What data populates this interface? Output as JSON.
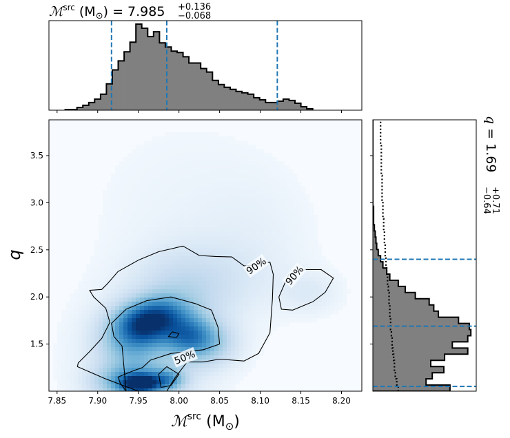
{
  "top_title": {
    "label": "ℳ",
    "label_sup": "src",
    "unit": " (M",
    "unit_sub": "⊙",
    "unit_close": ")",
    "equals": " = ",
    "value": "7.985",
    "upper": "+0.136",
    "lower": "−0.068"
  },
  "side_title": {
    "label": "q",
    "equals": " = ",
    "value": "1.69",
    "upper": "+0.71",
    "lower": "−0.64"
  },
  "xlabel": {
    "label": "ℳ",
    "label_sup": "src",
    "unit": " (M",
    "unit_sub": "⊙",
    "unit_close": ")"
  },
  "ylabel": "q",
  "colors": {
    "hist_fill": "#808080",
    "hist_edge": "#000000",
    "quantile_line": "#1f77b4",
    "heat_low": "#f7fbff",
    "heat_high": "#08306b",
    "contour": "#000000"
  },
  "chart_data": [
    {
      "type": "heatmap",
      "xlim": [
        7.84,
        8.225
      ],
      "ylim": [
        1.0,
        3.88
      ],
      "x_ticks": [
        7.85,
        7.9,
        7.95,
        8.0,
        8.05,
        8.1,
        8.15,
        8.2
      ],
      "x_tick_labels": [
        "7.85",
        "7.90",
        "7.95",
        "8.00",
        "8.05",
        "8.10",
        "8.15",
        "8.20"
      ],
      "y_ticks": [
        1.5,
        2.0,
        2.5,
        3.0,
        3.5
      ],
      "y_tick_labels": [
        "1.5",
        "2.0",
        "2.5",
        "3.0",
        "3.5"
      ],
      "contour_labels": [
        {
          "text": "90%",
          "x": 8.095,
          "y": 2.33,
          "rotation": -35
        },
        {
          "text": "90%",
          "x": 8.142,
          "y": 2.23,
          "rotation": -50
        },
        {
          "text": "50%",
          "x": 8.007,
          "y": 1.36,
          "rotation": -22
        }
      ],
      "contours": [
        {
          "level": "90%",
          "points": [
            [
              7.95,
              1.0
            ],
            [
              7.91,
              1.13
            ],
            [
              7.875,
              1.26
            ],
            [
              7.876,
              1.3
            ],
            [
              7.89,
              1.42
            ],
            [
              7.905,
              1.56
            ],
            [
              7.915,
              1.73
            ],
            [
              7.91,
              1.88
            ],
            [
              7.895,
              2.0
            ],
            [
              7.89,
              2.07
            ],
            [
              7.905,
              2.08
            ],
            [
              7.912,
              2.14
            ],
            [
              7.925,
              2.27
            ],
            [
              7.95,
              2.39
            ],
            [
              7.975,
              2.48
            ],
            [
              8.005,
              2.54
            ],
            [
              8.025,
              2.44
            ],
            [
              8.045,
              2.43
            ],
            [
              8.065,
              2.425
            ],
            [
              8.08,
              2.33
            ],
            [
              8.095,
              2.34
            ],
            [
              8.112,
              2.37
            ],
            [
              8.116,
              2.24
            ],
            [
              8.115,
              1.98
            ],
            [
              8.112,
              1.62
            ],
            [
              8.098,
              1.4
            ],
            [
              8.08,
              1.32
            ],
            [
              8.05,
              1.34
            ],
            [
              8.03,
              1.31
            ],
            [
              8.01,
              1.31
            ],
            [
              7.995,
              1.14
            ],
            [
              7.985,
              1.0
            ]
          ]
        },
        {
          "level": "90%",
          "points": [
            [
              8.135,
              2.24
            ],
            [
              8.155,
              2.29
            ],
            [
              8.175,
              2.29
            ],
            [
              8.19,
              2.2
            ],
            [
              8.18,
              2.05
            ],
            [
              8.165,
              1.95
            ],
            [
              8.14,
              1.86
            ],
            [
              8.126,
              1.87
            ],
            [
              8.123,
              2.0
            ],
            [
              8.13,
              2.14
            ]
          ]
        },
        {
          "level": "50%",
          "points": [
            [
              7.935,
              1.0
            ],
            [
              7.928,
              1.08
            ],
            [
              7.925,
              1.15
            ],
            [
              7.945,
              1.22
            ],
            [
              7.955,
              1.25
            ],
            [
              7.965,
              1.33
            ],
            [
              7.99,
              1.4
            ],
            [
              8.03,
              1.44
            ],
            [
              8.05,
              1.5
            ],
            [
              8.048,
              1.68
            ],
            [
              8.04,
              1.86
            ],
            [
              8.02,
              1.93
            ],
            [
              7.99,
              2.0
            ],
            [
              7.96,
              1.96
            ],
            [
              7.935,
              1.87
            ],
            [
              7.917,
              1.72
            ],
            [
              7.92,
              1.58
            ],
            [
              7.93,
              1.48
            ]
          ]
        },
        {
          "level": "50%",
          "points": [
            [
              7.99,
              1.06
            ],
            [
              8.0,
              1.18
            ],
            [
              7.985,
              1.26
            ],
            [
              7.975,
              1.18
            ],
            [
              7.978,
              1.04
            ]
          ]
        },
        {
          "level": "50%",
          "points": [
            [
              7.987,
              1.58
            ],
            [
              7.992,
              1.63
            ],
            [
              8.0,
              1.61
            ],
            [
              7.997,
              1.57
            ]
          ]
        }
      ]
    },
    {
      "type": "bar",
      "orientation": "vertical",
      "xlim": [
        7.84,
        8.225
      ],
      "bin_edges_start": 7.86,
      "bin_width": 0.00725,
      "values": [
        1,
        1,
        4,
        7,
        11,
        16,
        23,
        38,
        58,
        71,
        84,
        98,
        124,
        118,
        106,
        113,
        97,
        91,
        85,
        83,
        77,
        68,
        68,
        60,
        55,
        43,
        37,
        33,
        30,
        27,
        25,
        23,
        18,
        15,
        11,
        11,
        13,
        16,
        14,
        10,
        5,
        2
      ],
      "quantiles": [
        7.917,
        7.985,
        8.121
      ]
    },
    {
      "type": "bar",
      "orientation": "horizontal",
      "ylim": [
        1.0,
        3.88
      ],
      "bin_edges_start": 1.0,
      "bin_width": 0.0654,
      "values": [
        100,
        69,
        77,
        92,
        75,
        93,
        123,
        103,
        123,
        127,
        125,
        111,
        85,
        79,
        73,
        55,
        42,
        33,
        22,
        18,
        13,
        10,
        7,
        5,
        4,
        3,
        2,
        1,
        1,
        1,
        0,
        0,
        0,
        0,
        0,
        0,
        0,
        0,
        0,
        0,
        0,
        0,
        0,
        0
      ],
      "prior": [
        33,
        31,
        29,
        28,
        28,
        27,
        26,
        25,
        25,
        24,
        23,
        23,
        22,
        22,
        21,
        21,
        20,
        19,
        19,
        18,
        17,
        17,
        16,
        16,
        15,
        15,
        14,
        14,
        13,
        13,
        13,
        12,
        12,
        12,
        12,
        11,
        11,
        11,
        11,
        11,
        10,
        10,
        10,
        10
      ],
      "quantiles": [
        1.05,
        1.69,
        2.4
      ]
    }
  ]
}
